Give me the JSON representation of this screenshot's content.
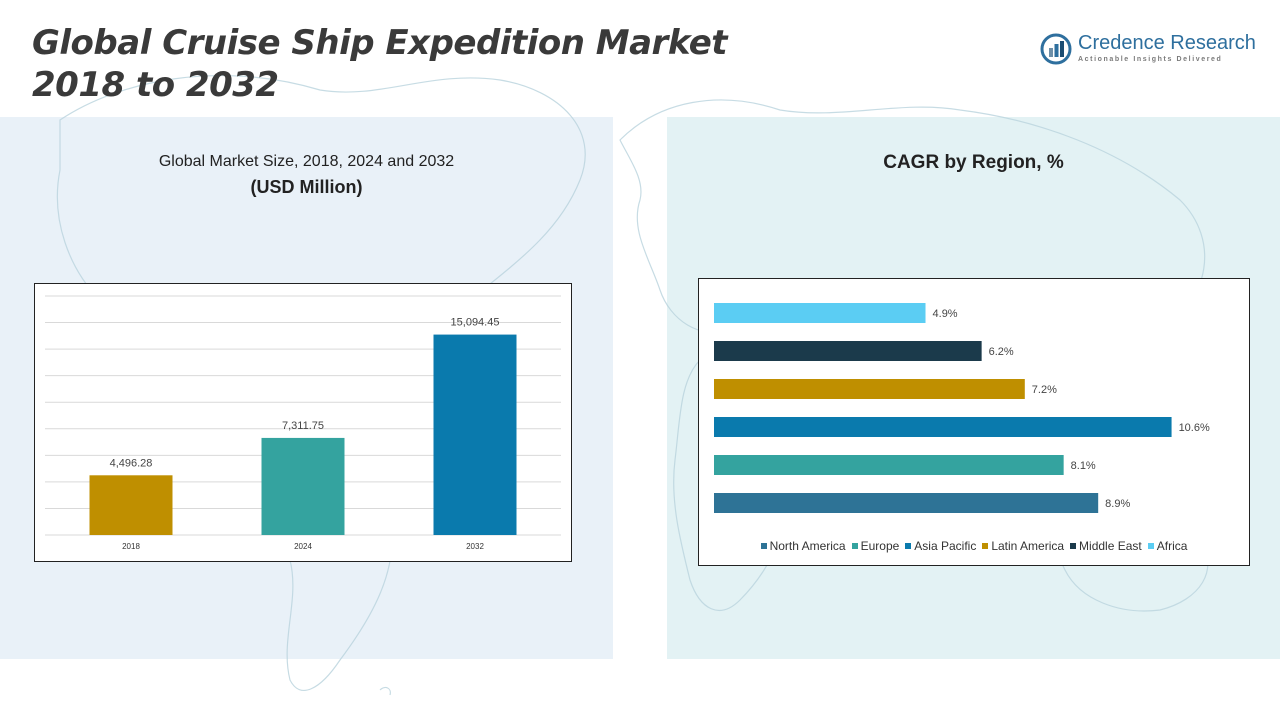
{
  "page": {
    "title_line1": "Global Cruise Ship Expedition Market",
    "title_line2": "2018 to 2032"
  },
  "logo": {
    "name": "Credence Research",
    "tagline": "Actionable Insights Delivered"
  },
  "left_panel": {
    "subtitle_line1": "Global Market Size, 2018, 2024 and 2032",
    "subtitle_line2": "(USD Million)"
  },
  "right_panel": {
    "title": "CAGR by Region, %"
  },
  "chart_data": [
    {
      "type": "bar",
      "title": "Global Market Size, 2018, 2024 and 2032",
      "ylabel": "(USD Million)",
      "categories": [
        "2018",
        "2024",
        "2032"
      ],
      "values": [
        4496.28,
        7311.75,
        15094.45
      ],
      "value_labels": [
        "4,496.28",
        "7,311.75",
        "15,094.45"
      ],
      "colors": [
        "#bf8f00",
        "#34a39f",
        "#0a7aad"
      ],
      "ylim": [
        0,
        18000
      ],
      "grid": true
    },
    {
      "type": "bar",
      "orientation": "horizontal",
      "title": "CAGR by Region, %",
      "categories": [
        "Africa",
        "Middle East",
        "Latin America",
        "Asia Pacific",
        "Europe",
        "North America"
      ],
      "values": [
        4.9,
        6.2,
        7.2,
        10.6,
        8.1,
        8.9
      ],
      "value_labels": [
        "4.9%",
        "6.2%",
        "7.2%",
        "10.6%",
        "8.1%",
        "8.9%"
      ],
      "colors": [
        "#5bcdf3",
        "#1b3a4b",
        "#bf8f00",
        "#0a7aad",
        "#34a39f",
        "#2e7396"
      ],
      "xlim": [
        0,
        12
      ],
      "legend": {
        "placement": "bottom",
        "entries": [
          "North America",
          "Europe",
          "Asia Pacific",
          "Latin America",
          "Middle East",
          "Africa"
        ],
        "colors": [
          "#2e7396",
          "#34a39f",
          "#0a7aad",
          "#bf8f00",
          "#1b3a4b",
          "#5bcdf3"
        ]
      }
    }
  ]
}
